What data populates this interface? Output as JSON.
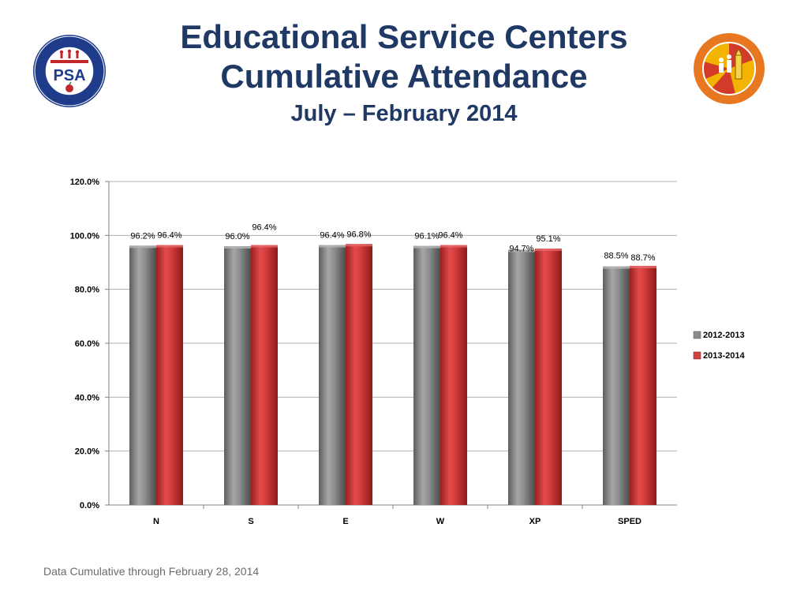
{
  "header": {
    "title_line1": "Educational Service Centers",
    "title_line2": "Cumulative Attendance",
    "subtitle": "July – February 2014"
  },
  "logos": {
    "left_icon": "psa-seal-icon",
    "left_text": "PSA",
    "right_icon": "lausd-board-seal-icon"
  },
  "footer": {
    "note": "Data Cumulative through February 28, 2014"
  },
  "colors": {
    "title": "#1f3864",
    "series_2012": "#8c8c8c",
    "series_2013": "#d23f3f",
    "grid": "#b0b0b0"
  },
  "chart_data": {
    "type": "bar",
    "categories": [
      "N",
      "S",
      "E",
      "W",
      "XP",
      "SPED"
    ],
    "series": [
      {
        "name": "2012-2013",
        "values": [
          96.2,
          96.0,
          96.4,
          96.1,
          94.7,
          88.5
        ],
        "labels": [
          "96.2%",
          "96.0%",
          "96.4%",
          "96.1%",
          "94.7%",
          "88.5%"
        ]
      },
      {
        "name": "2013-2014",
        "values": [
          96.4,
          96.4,
          96.8,
          96.4,
          95.1,
          88.7
        ],
        "labels": [
          "96.4%",
          "96.4%",
          "96.8%",
          "96.4%",
          "95.1%",
          "88.7%"
        ]
      }
    ],
    "ylim": [
      0,
      120
    ],
    "yticks": [
      "0.0%",
      "20.0%",
      "40.0%",
      "60.0%",
      "80.0%",
      "100.0%",
      "120.0%"
    ],
    "grid": true,
    "legend": "right"
  }
}
